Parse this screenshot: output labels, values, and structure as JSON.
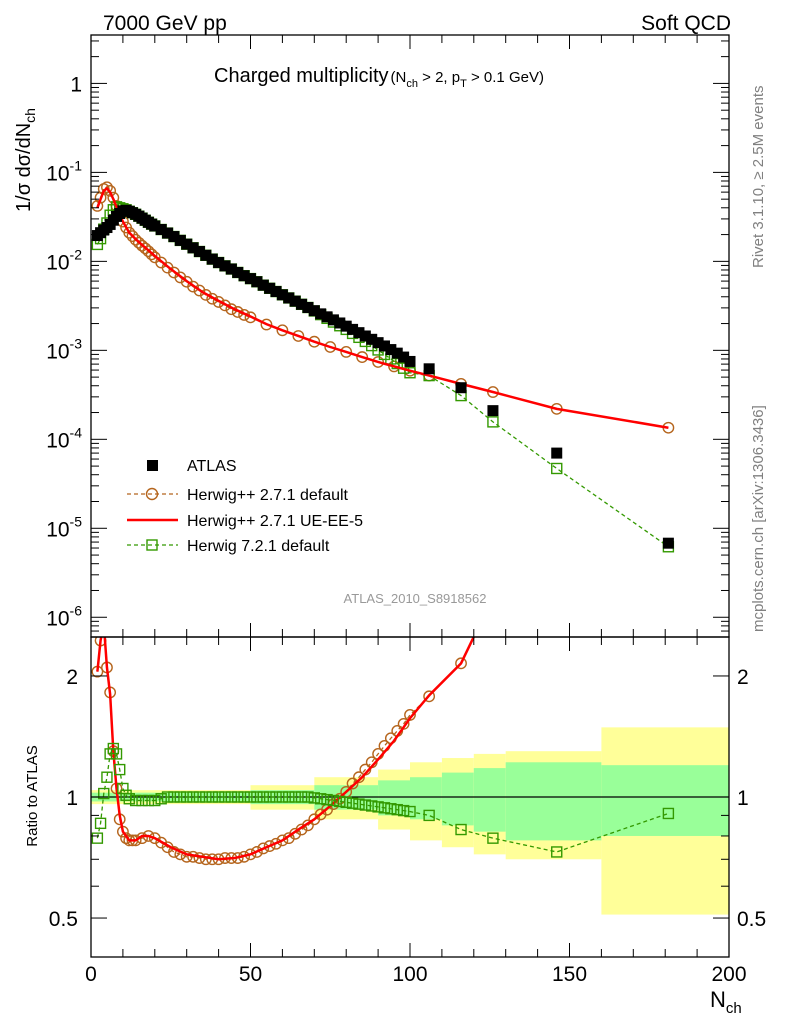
{
  "header": {
    "left": "7000 GeV pp",
    "right": "Soft QCD"
  },
  "side_labels": {
    "rivet": "Rivet 3.1.10, ≥ 2.5M events",
    "mcplots": "mcplots.cern.ch [arXiv:1306.3436]"
  },
  "analysis_id": "ATLAS_2010_S8918562",
  "chart_data": {
    "type": "scatter",
    "title": "Charged multiplicity",
    "title_sub": "(N_ch > 2, p_T > 0.1 GeV)",
    "xlabel": "N_ch",
    "xlim": [
      0,
      200
    ],
    "x_ticks": [
      0,
      50,
      100,
      150,
      200
    ],
    "main": {
      "ylabel": "1/σ dσ/dN_ch",
      "yscale": "log",
      "ylim": [
        6e-07,
        3.5
      ],
      "y_tick_labels": [
        "1",
        "10^-1",
        "10^-2",
        "10^-3",
        "10^-4",
        "10^-5",
        "10^-6"
      ],
      "legend_position": "lower-left",
      "series": [
        {
          "name": "ATLAS",
          "style": "data",
          "color": "#000000",
          "x": [
            2,
            3,
            4,
            5,
            6,
            7,
            8,
            9,
            10,
            11,
            12,
            13,
            14,
            15,
            16,
            17,
            18,
            19,
            20,
            22,
            24,
            26,
            28,
            30,
            32,
            34,
            36,
            38,
            40,
            42,
            44,
            46,
            48,
            50,
            52,
            54,
            56,
            58,
            60,
            62,
            64,
            66,
            68,
            70,
            72,
            74,
            76,
            78,
            80,
            82,
            84,
            86,
            88,
            90,
            92,
            94,
            96,
            98,
            100,
            106,
            116,
            126,
            146,
            181
          ],
          "y": [
            0.0195,
            0.021,
            0.0225,
            0.024,
            0.026,
            0.029,
            0.032,
            0.0345,
            0.037,
            0.0375,
            0.0365,
            0.0352,
            0.0338,
            0.0322,
            0.0306,
            0.029,
            0.0275,
            0.0262,
            0.025,
            0.0228,
            0.0208,
            0.019,
            0.0172,
            0.0156,
            0.0142,
            0.0129,
            0.0117,
            0.0106,
            0.0097,
            0.0089,
            0.0082,
            0.0075,
            0.0069,
            0.0064,
            0.0059,
            0.0054,
            0.00498,
            0.00458,
            0.00421,
            0.00388,
            0.00357,
            0.00329,
            0.00303,
            0.00279,
            0.00257,
            0.00238,
            0.0022,
            0.00203,
            0.00187,
            0.00172,
            0.00158,
            0.00145,
            0.00133,
            0.00122,
            0.00112,
            0.00102,
            0.00093,
            0.00084,
            0.00075,
            0.00062,
            0.00038,
            0.00021,
            7e-05,
            6.8e-06
          ]
        },
        {
          "name": "Herwig++ 2.7.1 default",
          "style": "circle-dashed",
          "color": "#b5651d",
          "x": [
            2,
            3,
            4,
            5,
            6,
            7,
            8,
            9,
            10,
            11,
            12,
            13,
            14,
            15,
            16,
            17,
            18,
            19,
            20,
            22,
            24,
            26,
            28,
            30,
            32,
            34,
            36,
            38,
            40,
            42,
            44,
            46,
            48,
            50,
            55,
            60,
            65,
            70,
            75,
            80,
            85,
            90,
            95,
            100,
            106,
            116,
            126,
            146,
            181
          ],
          "y": [
            0.042,
            0.052,
            0.065,
            0.068,
            0.062,
            0.052,
            0.042,
            0.034,
            0.028,
            0.024,
            0.021,
            0.0192,
            0.0175,
            0.0162,
            0.015,
            0.014,
            0.013,
            0.012,
            0.0111,
            0.0097,
            0.0085,
            0.0075,
            0.0066,
            0.0059,
            0.0052,
            0.0047,
            0.0042,
            0.0038,
            0.0035,
            0.0032,
            0.0029,
            0.0027,
            0.0025,
            0.00235,
            0.00195,
            0.00168,
            0.00145,
            0.00125,
            0.00109,
            0.00096,
            0.00084,
            0.00074,
            0.00066,
            0.00059,
            0.00052,
            0.00042,
            0.00034,
            0.00022,
            0.000135
          ]
        },
        {
          "name": "Herwig++ 2.7.1 UE-EE-5",
          "style": "line",
          "color": "#ff0000",
          "x": [
            2,
            3,
            4,
            5,
            6,
            7,
            8,
            9,
            10,
            12,
            14,
            16,
            18,
            20,
            25,
            30,
            35,
            40,
            45,
            50,
            55,
            60,
            65,
            70,
            75,
            80,
            85,
            90,
            95,
            100,
            106,
            116,
            126,
            146,
            181
          ],
          "y": [
            0.04,
            0.05,
            0.062,
            0.066,
            0.06,
            0.05,
            0.041,
            0.033,
            0.028,
            0.021,
            0.0178,
            0.0153,
            0.0133,
            0.0115,
            0.0082,
            0.006,
            0.0045,
            0.0036,
            0.0029,
            0.0024,
            0.00197,
            0.00168,
            0.00145,
            0.00125,
            0.00109,
            0.00096,
            0.00084,
            0.00074,
            0.00066,
            0.00059,
            0.00052,
            0.00042,
            0.00034,
            0.00022,
            0.000135
          ]
        },
        {
          "name": "Herwig 7.2.1 default",
          "style": "square-dashed",
          "color": "#339900",
          "x": [
            2,
            3,
            4,
            5,
            6,
            7,
            8,
            9,
            10,
            11,
            12,
            13,
            14,
            15,
            16,
            17,
            18,
            19,
            20,
            22,
            24,
            26,
            28,
            30,
            32,
            34,
            36,
            38,
            40,
            42,
            44,
            46,
            48,
            50,
            52,
            54,
            56,
            58,
            60,
            62,
            64,
            66,
            68,
            70,
            72,
            74,
            76,
            78,
            80,
            82,
            84,
            86,
            88,
            90,
            92,
            94,
            96,
            98,
            100,
            106,
            116,
            126,
            146,
            181
          ],
          "y": [
            0.0155,
            0.018,
            0.023,
            0.027,
            0.033,
            0.038,
            0.041,
            0.04,
            0.039,
            0.038,
            0.0365,
            0.0352,
            0.0338,
            0.0322,
            0.0306,
            0.029,
            0.0275,
            0.0262,
            0.025,
            0.0228,
            0.0208,
            0.019,
            0.0172,
            0.0156,
            0.0142,
            0.0129,
            0.0117,
            0.0106,
            0.0097,
            0.0089,
            0.0082,
            0.0075,
            0.0069,
            0.0064,
            0.0059,
            0.0054,
            0.00498,
            0.00458,
            0.00421,
            0.00388,
            0.00357,
            0.00329,
            0.00303,
            0.00277,
            0.00252,
            0.00229,
            0.00208,
            0.00189,
            0.00172,
            0.00155,
            0.0014,
            0.00126,
            0.00113,
            0.00101,
            0.0009,
            0.0008,
            0.00071,
            0.00063,
            0.00056,
            0.00052,
            0.00031,
            0.000157,
            4.7e-05,
            6.2e-06
          ]
        }
      ]
    },
    "ratio": {
      "ylabel": "Ratio to ATLAS",
      "yscale": "log",
      "ylim": [
        0.4,
        2.5
      ],
      "y_ticks": [
        0.5,
        1,
        2
      ],
      "y_tick_labels": [
        "0.5",
        "1",
        "2"
      ],
      "reference_line": 1,
      "band_colors": {
        "stat": "#99ff99",
        "total": "#ffff99"
      },
      "bands": [
        {
          "x0": 0,
          "x1": 50,
          "inner": 0.025,
          "outer": 0.04
        },
        {
          "x0": 50,
          "x1": 70,
          "inner": 0.04,
          "outer": 0.07
        },
        {
          "x0": 70,
          "x1": 90,
          "inner": 0.07,
          "outer": 0.12
        },
        {
          "x0": 90,
          "x1": 100,
          "inner": 0.1,
          "outer": 0.17
        },
        {
          "x0": 100,
          "x1": 110,
          "inner": 0.12,
          "outer": 0.22
        },
        {
          "x0": 110,
          "x1": 120,
          "inner": 0.15,
          "outer": 0.25
        },
        {
          "x0": 120,
          "x1": 130,
          "inner": 0.18,
          "outer": 0.28
        },
        {
          "x0": 130,
          "x1": 160,
          "inner": 0.22,
          "outer": 0.3
        },
        {
          "x0": 160,
          "x1": 200,
          "inner": 0.2,
          "outer": 0.49
        }
      ],
      "series": [
        {
          "name": "Herwig++ 2.7.1 default",
          "style": "circle-dashed",
          "color": "#b5651d",
          "x": [
            2,
            3,
            4,
            5,
            6,
            7,
            8,
            9,
            10,
            11,
            12,
            13,
            14,
            16,
            18,
            20,
            22,
            24,
            26,
            28,
            30,
            32,
            34,
            36,
            38,
            40,
            42,
            44,
            46,
            48,
            50,
            52,
            54,
            56,
            58,
            60,
            62,
            64,
            66,
            68,
            70,
            72,
            74,
            76,
            78,
            80,
            82,
            84,
            86,
            88,
            90,
            92,
            94,
            96,
            98,
            100,
            106,
            116
          ],
          "y": [
            2.05,
            2.45,
            2.7,
            2.1,
            1.82,
            1.3,
            1.05,
            0.88,
            0.82,
            0.79,
            0.78,
            0.78,
            0.78,
            0.79,
            0.8,
            0.79,
            0.77,
            0.75,
            0.73,
            0.72,
            0.71,
            0.71,
            0.705,
            0.7,
            0.7,
            0.7,
            0.705,
            0.705,
            0.705,
            0.71,
            0.72,
            0.73,
            0.745,
            0.755,
            0.765,
            0.78,
            0.79,
            0.81,
            0.83,
            0.85,
            0.88,
            0.905,
            0.93,
            0.96,
            0.99,
            1.03,
            1.08,
            1.12,
            1.17,
            1.22,
            1.28,
            1.34,
            1.4,
            1.46,
            1.52,
            1.6,
            1.78,
            2.15
          ]
        },
        {
          "name": "Herwig++ 2.7.1 UE-EE-5",
          "style": "line",
          "color": "#ff0000",
          "x": [
            2,
            3,
            4,
            5,
            6,
            7,
            8,
            9,
            10,
            12,
            14,
            16,
            18,
            20,
            25,
            30,
            35,
            40,
            45,
            50,
            55,
            60,
            65,
            70,
            75,
            80,
            85,
            90,
            95,
            100,
            106,
            116,
            121
          ],
          "y": [
            2.05,
            2.45,
            2.7,
            2.1,
            1.8,
            1.3,
            1.05,
            0.9,
            0.82,
            0.78,
            0.78,
            0.8,
            0.8,
            0.79,
            0.75,
            0.72,
            0.71,
            0.7,
            0.705,
            0.72,
            0.75,
            0.78,
            0.83,
            0.88,
            0.95,
            1.03,
            1.12,
            1.24,
            1.38,
            1.57,
            1.79,
            2.15,
            2.6
          ]
        },
        {
          "name": "Herwig 7.2.1 default",
          "style": "square-dashed",
          "color": "#339900",
          "x": [
            2,
            3,
            4,
            5,
            6,
            7,
            8,
            9,
            10,
            11,
            12,
            14,
            16,
            18,
            20,
            22,
            24,
            26,
            28,
            30,
            32,
            34,
            36,
            38,
            40,
            42,
            44,
            46,
            48,
            50,
            52,
            54,
            56,
            58,
            60,
            62,
            64,
            66,
            68,
            70,
            72,
            74,
            76,
            78,
            80,
            82,
            84,
            86,
            88,
            90,
            92,
            94,
            96,
            98,
            100,
            106,
            116,
            126,
            146,
            181
          ],
          "y": [
            0.79,
            0.86,
            1.02,
            1.12,
            1.28,
            1.32,
            1.28,
            1.17,
            1.05,
            1.01,
            0.99,
            0.98,
            0.98,
            0.98,
            0.98,
            0.99,
            1.0,
            1.0,
            1.0,
            1.0,
            1.0,
            1.0,
            1.0,
            1.0,
            1.0,
            1.0,
            1.0,
            1.0,
            1.0,
            1.0,
            1.0,
            1.0,
            1.0,
            1.0,
            1.0,
            1.0,
            1.0,
            1.0,
            1.0,
            0.995,
            0.99,
            0.985,
            0.98,
            0.975,
            0.97,
            0.965,
            0.96,
            0.955,
            0.95,
            0.945,
            0.94,
            0.935,
            0.93,
            0.925,
            0.92,
            0.9,
            0.83,
            0.79,
            0.73,
            0.91
          ]
        }
      ]
    }
  }
}
